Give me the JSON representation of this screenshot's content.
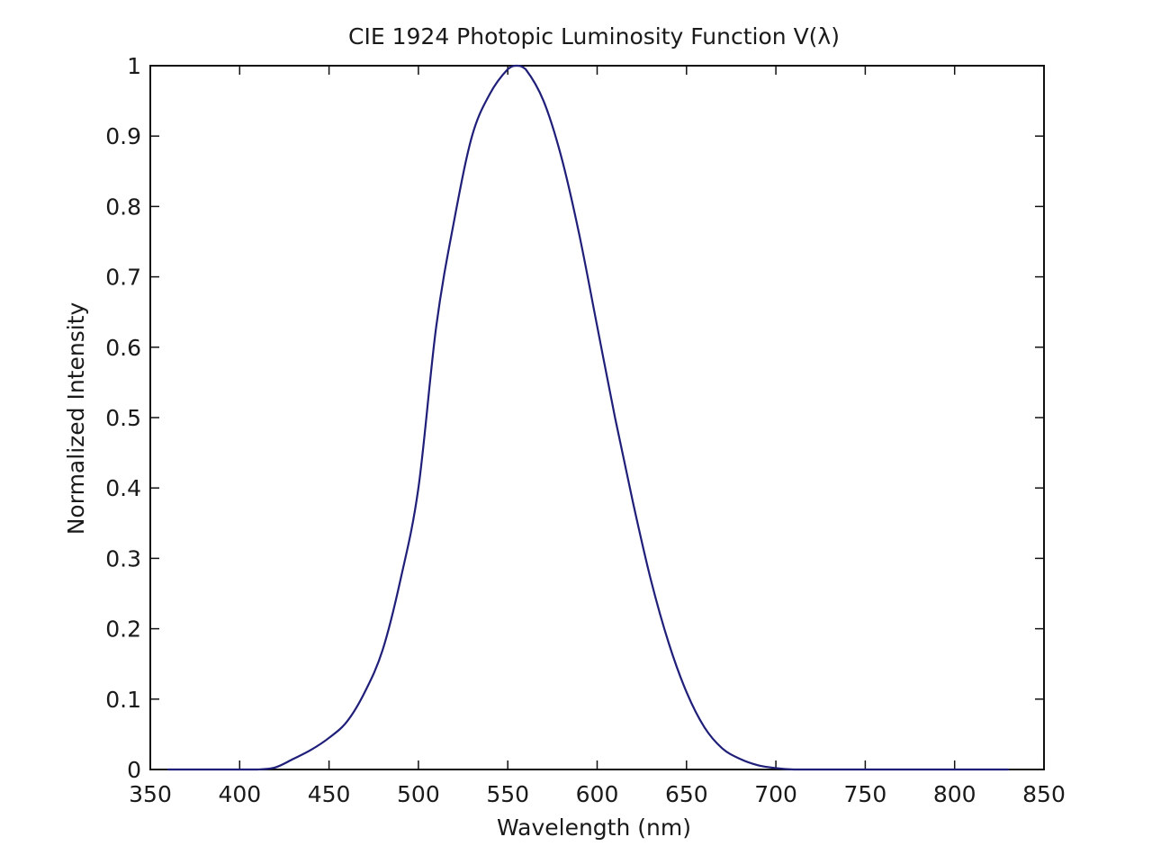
{
  "chart_data": {
    "type": "line",
    "title": "CIE 1924 Photopic Luminosity Function V(λ)",
    "xlabel": "Wavelength (nm)",
    "ylabel": "Normalized Intensity",
    "xlim": [
      350,
      850
    ],
    "ylim": [
      0,
      1
    ],
    "xticks": [
      350,
      400,
      450,
      500,
      550,
      600,
      650,
      700,
      750,
      800,
      850
    ],
    "yticks": [
      0,
      0.1,
      0.2,
      0.3,
      0.4,
      0.5,
      0.6,
      0.7,
      0.8,
      0.9,
      1
    ],
    "xtick_labels": [
      "350",
      "400",
      "450",
      "500",
      "550",
      "600",
      "650",
      "700",
      "750",
      "800",
      "850"
    ],
    "ytick_labels": [
      "0",
      "0.1",
      "0.2",
      "0.3",
      "0.4",
      "0.5",
      "0.6",
      "0.7",
      "0.8",
      "0.9",
      "1"
    ],
    "grid": false,
    "line_color": "#1f1f7a",
    "series": [
      {
        "x": [
          360,
          380,
          400,
          410,
          420,
          430,
          440,
          450,
          460,
          470,
          480,
          490,
          500,
          510,
          520,
          530,
          540,
          550,
          555,
          560,
          570,
          580,
          590,
          600,
          610,
          620,
          630,
          640,
          650,
          660,
          670,
          680,
          690,
          700,
          710,
          720,
          740,
          760,
          780,
          800,
          830
        ],
        "y": [
          0,
          0,
          0,
          0,
          0.003,
          0.015,
          0.028,
          0.045,
          0.068,
          0.11,
          0.17,
          0.27,
          0.4,
          0.63,
          0.78,
          0.9,
          0.96,
          0.995,
          1.0,
          0.995,
          0.95,
          0.87,
          0.76,
          0.63,
          0.5,
          0.38,
          0.27,
          0.18,
          0.11,
          0.06,
          0.03,
          0.015,
          0.006,
          0.002,
          0,
          0,
          0,
          0,
          0,
          0,
          0
        ]
      }
    ]
  }
}
